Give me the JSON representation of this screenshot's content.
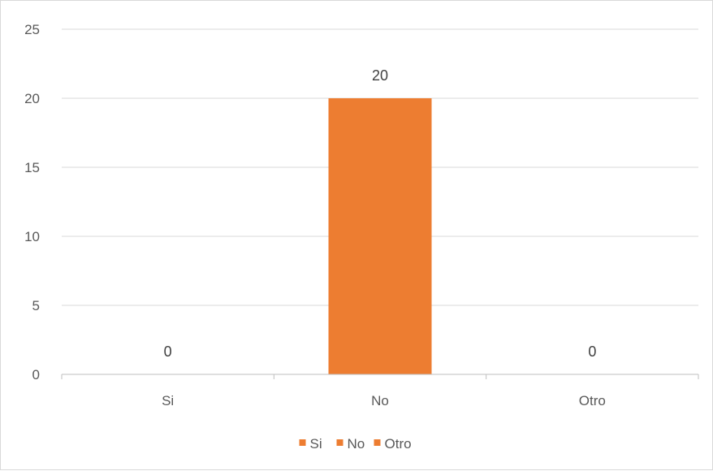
{
  "chart_data": {
    "type": "bar",
    "categories": [
      "Si",
      "No",
      "Otro"
    ],
    "values": [
      0,
      20,
      0
    ],
    "data_labels": [
      "0",
      "20",
      "0"
    ],
    "ylim": [
      0,
      25
    ],
    "yticks": [
      0,
      5,
      10,
      15,
      20,
      25
    ],
    "ytick_labels": [
      "0",
      "5",
      "10",
      "15",
      "20",
      "25"
    ],
    "grid": true,
    "legend": {
      "placement": "bottom",
      "entries": [
        "Si",
        "No",
        "Otro"
      ]
    },
    "colors": {
      "bar": "#ED7D31",
      "gridline": "#D9D9D9",
      "axis": "#BFBFBF",
      "text": "#595959"
    }
  }
}
